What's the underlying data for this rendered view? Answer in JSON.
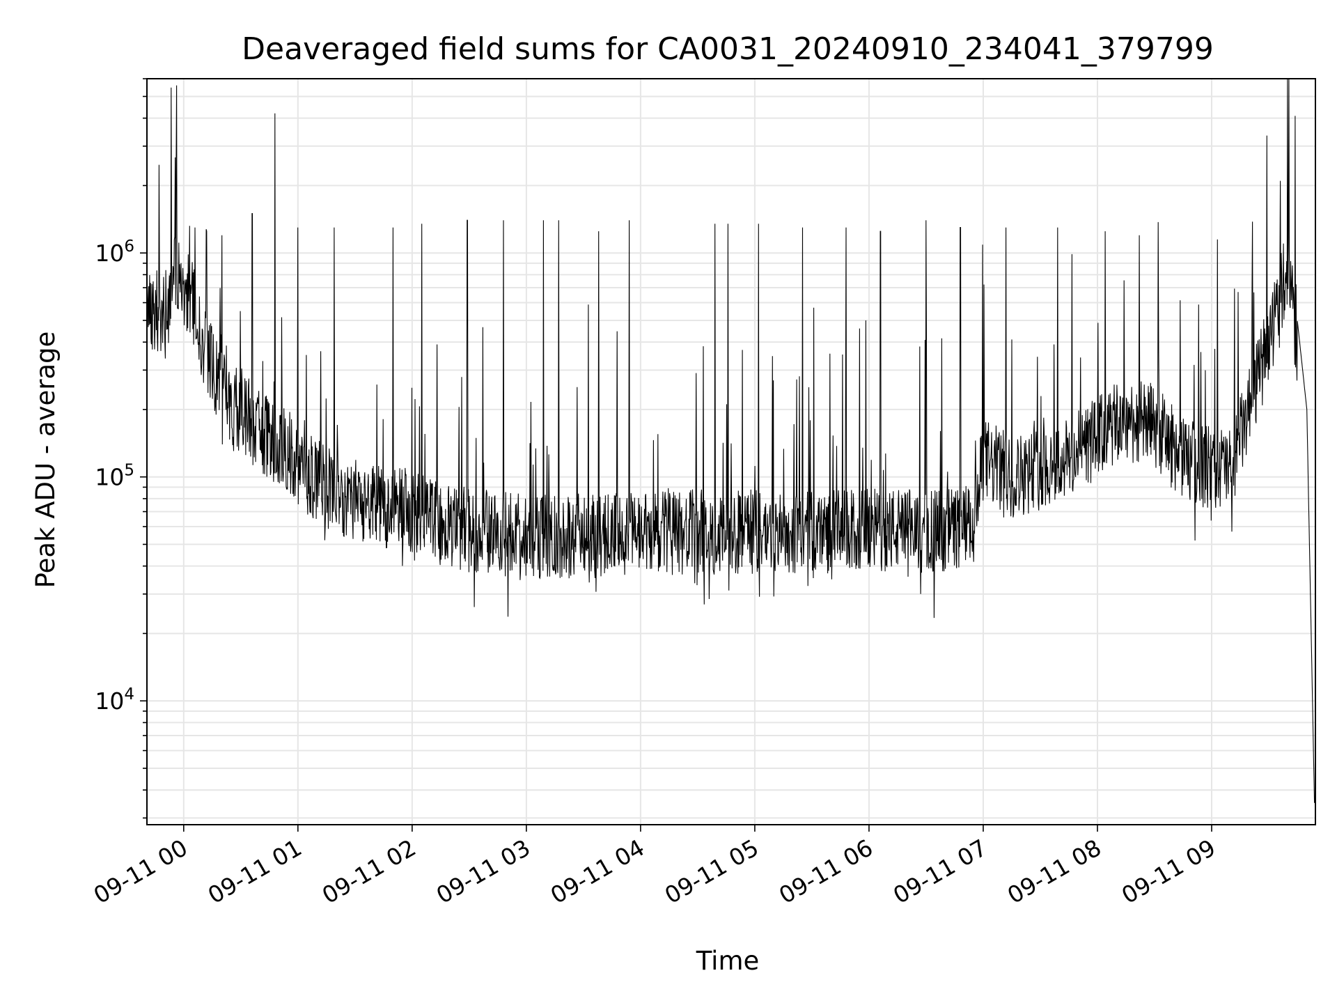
{
  "chart_data": {
    "type": "line",
    "title": "Deaveraged field sums for CA0031_20240910_234041_379799",
    "xlabel": "Time",
    "ylabel": "Peak ADU - average",
    "y_scale": "log",
    "ylim": [
      2800,
      6000000
    ],
    "xlim": [
      "2024-09-10 23:40:41",
      "2024-09-11 09:54:30"
    ],
    "grid": true,
    "line_color": "#000000",
    "grid_color": "#e6e6e6",
    "x_ticks": [
      "09-11 00",
      "09-11 01",
      "09-11 02",
      "09-11 03",
      "09-11 04",
      "09-11 05",
      "09-11 06",
      "09-11 07",
      "09-11 08",
      "09-11 09"
    ],
    "y_ticks": [
      {
        "base": "10",
        "exp": "4",
        "value": 10000
      },
      {
        "base": "10",
        "exp": "5",
        "value": 100000
      },
      {
        "base": "10",
        "exp": "6",
        "value": 1000000
      }
    ],
    "series": [
      {
        "x": [
          "2024-09-10 23:40:41",
          "2024-09-10 23:46",
          "2024-09-10 23:52",
          "2024-09-10 23:56",
          "2024-09-11 00:00",
          "2024-09-11 00:05",
          "2024-09-11 00:10",
          "2024-09-11 00:15",
          "2024-09-11 00:20",
          "2024-09-11 00:25",
          "2024-09-11 00:30",
          "2024-09-11 00:35",
          "2024-09-11 00:40",
          "2024-09-11 00:45",
          "2024-09-11 00:50",
          "2024-09-11 00:55",
          "2024-09-11 01:00",
          "2024-09-11 01:15",
          "2024-09-11 01:30",
          "2024-09-11 01:45",
          "2024-09-11 02:00",
          "2024-09-11 02:15",
          "2024-09-11 02:30",
          "2024-09-11 02:45",
          "2024-09-11 03:00",
          "2024-09-11 03:15",
          "2024-09-11 03:30",
          "2024-09-11 03:45",
          "2024-09-11 04:00",
          "2024-09-11 04:15",
          "2024-09-11 04:30",
          "2024-09-11 04:45",
          "2024-09-11 05:00",
          "2024-09-11 05:15",
          "2024-09-11 05:30",
          "2024-09-11 05:45",
          "2024-09-11 06:00",
          "2024-09-11 06:15",
          "2024-09-11 06:30",
          "2024-09-11 06:45",
          "2024-09-11 06:55",
          "2024-09-11 07:00",
          "2024-09-11 07:15",
          "2024-09-11 07:30",
          "2024-09-11 07:45",
          "2024-09-11 08:00",
          "2024-09-11 08:15",
          "2024-09-11 08:30",
          "2024-09-11 08:45",
          "2024-09-11 09:00",
          "2024-09-11 09:10",
          "2024-09-11 09:20",
          "2024-09-11 09:30",
          "2024-09-11 09:36",
          "2024-09-11 09:40",
          "2024-09-11 09:45",
          "2024-09-11 09:50",
          "2024-09-11 09:54"
        ],
        "y": [
          600000,
          550000,
          580000,
          900000,
          700000,
          600000,
          400000,
          300000,
          250000,
          200000,
          200000,
          180000,
          160000,
          150000,
          140000,
          130000,
          110000,
          90000,
          80000,
          75000,
          70000,
          62000,
          58000,
          57000,
          55000,
          54000,
          55000,
          56000,
          55000,
          56000,
          57000,
          56000,
          57000,
          56000,
          57000,
          57000,
          58000,
          58000,
          57000,
          59000,
          60000,
          120000,
          100000,
          110000,
          120000,
          150000,
          180000,
          170000,
          120000,
          110000,
          110000,
          200000,
          400000,
          650000,
          900000,
          500000,
          200000,
          3500
        ]
      }
    ],
    "spikes": [
      {
        "x": "2024-09-10 23:56",
        "y": 2300000
      },
      {
        "x": "2024-09-11 00:06",
        "y": 1300000
      },
      {
        "x": "2024-09-11 00:12",
        "y": 1250000
      },
      {
        "x": "2024-09-11 00:20",
        "y": 1200000
      },
      {
        "x": "2024-09-11 00:36",
        "y": 1500000
      },
      {
        "x": "2024-09-11 00:48",
        "y": 4200000
      },
      {
        "x": "2024-09-11 01:00",
        "y": 1300000
      },
      {
        "x": "2024-09-11 01:19",
        "y": 1300000
      },
      {
        "x": "2024-09-11 01:50",
        "y": 1300000
      },
      {
        "x": "2024-09-11 02:05",
        "y": 1350000
      },
      {
        "x": "2024-09-11 02:29",
        "y": 1400000
      },
      {
        "x": "2024-09-11 02:48",
        "y": 1400000
      },
      {
        "x": "2024-09-11 03:09",
        "y": 1400000
      },
      {
        "x": "2024-09-11 03:17",
        "y": 1400000
      },
      {
        "x": "2024-09-11 03:38",
        "y": 1250000
      },
      {
        "x": "2024-09-11 03:54",
        "y": 1400000
      },
      {
        "x": "2024-09-11 04:39",
        "y": 1350000
      },
      {
        "x": "2024-09-11 04:46",
        "y": 1350000
      },
      {
        "x": "2024-09-11 05:02",
        "y": 1350000
      },
      {
        "x": "2024-09-11 05:25",
        "y": 1300000
      },
      {
        "x": "2024-09-11 05:48",
        "y": 1300000
      },
      {
        "x": "2024-09-11 06:06",
        "y": 1250000
      },
      {
        "x": "2024-09-11 06:30",
        "y": 1400000
      },
      {
        "x": "2024-09-11 06:48",
        "y": 1300000
      },
      {
        "x": "2024-09-11 07:12",
        "y": 1300000
      },
      {
        "x": "2024-09-11 07:39",
        "y": 1300000
      },
      {
        "x": "2024-09-11 08:04",
        "y": 1250000
      },
      {
        "x": "2024-09-11 08:22",
        "y": 1200000
      },
      {
        "x": "2024-09-11 09:03",
        "y": 1150000
      },
      {
        "x": "2024-09-11 09:36",
        "y": 2100000
      }
    ]
  }
}
